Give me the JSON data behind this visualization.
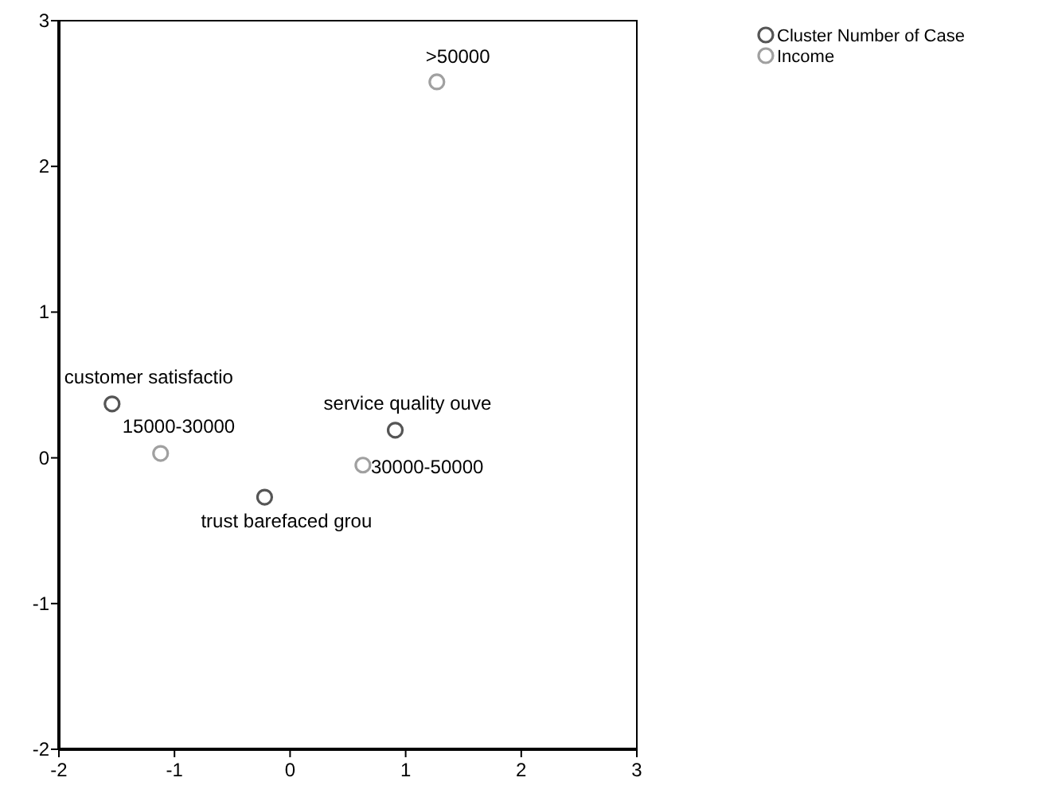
{
  "chart_data": {
    "type": "scatter",
    "xlim": [
      -2,
      3
    ],
    "ylim": [
      -2,
      3
    ],
    "xticks": [
      -2,
      -1,
      0,
      1,
      2,
      3
    ],
    "yticks": [
      -2,
      -1,
      0,
      1,
      2,
      3
    ],
    "grid": false,
    "legend": "top right",
    "marker": "circle",
    "series": [
      {
        "name": "Cluster Number of Case",
        "color": "#555555",
        "x": [
          -1.54,
          0.91,
          -0.22
        ],
        "values": [
          0.37,
          0.19,
          -0.27
        ]
      },
      {
        "name": "Income",
        "color": "#a0a0a0",
        "x": [
          1.27,
          -1.12,
          0.63
        ],
        "values": [
          2.58,
          0.03,
          -0.05
        ]
      }
    ],
    "annotations": [
      {
        "text": ">50000",
        "x": 1.27,
        "y": 2.58
      },
      {
        "text": "customer satisfactio",
        "x": -1.54,
        "y": 0.37
      },
      {
        "text": "15000-30000",
        "x": -1.12,
        "y": 0.03
      },
      {
        "text": "service quality ouve",
        "x": 0.91,
        "y": 0.19
      },
      {
        "text": "30000-50000",
        "x": 0.63,
        "y": -0.05
      },
      {
        "text": "trust barefaced grou",
        "x": -0.22,
        "y": -0.27
      }
    ]
  }
}
